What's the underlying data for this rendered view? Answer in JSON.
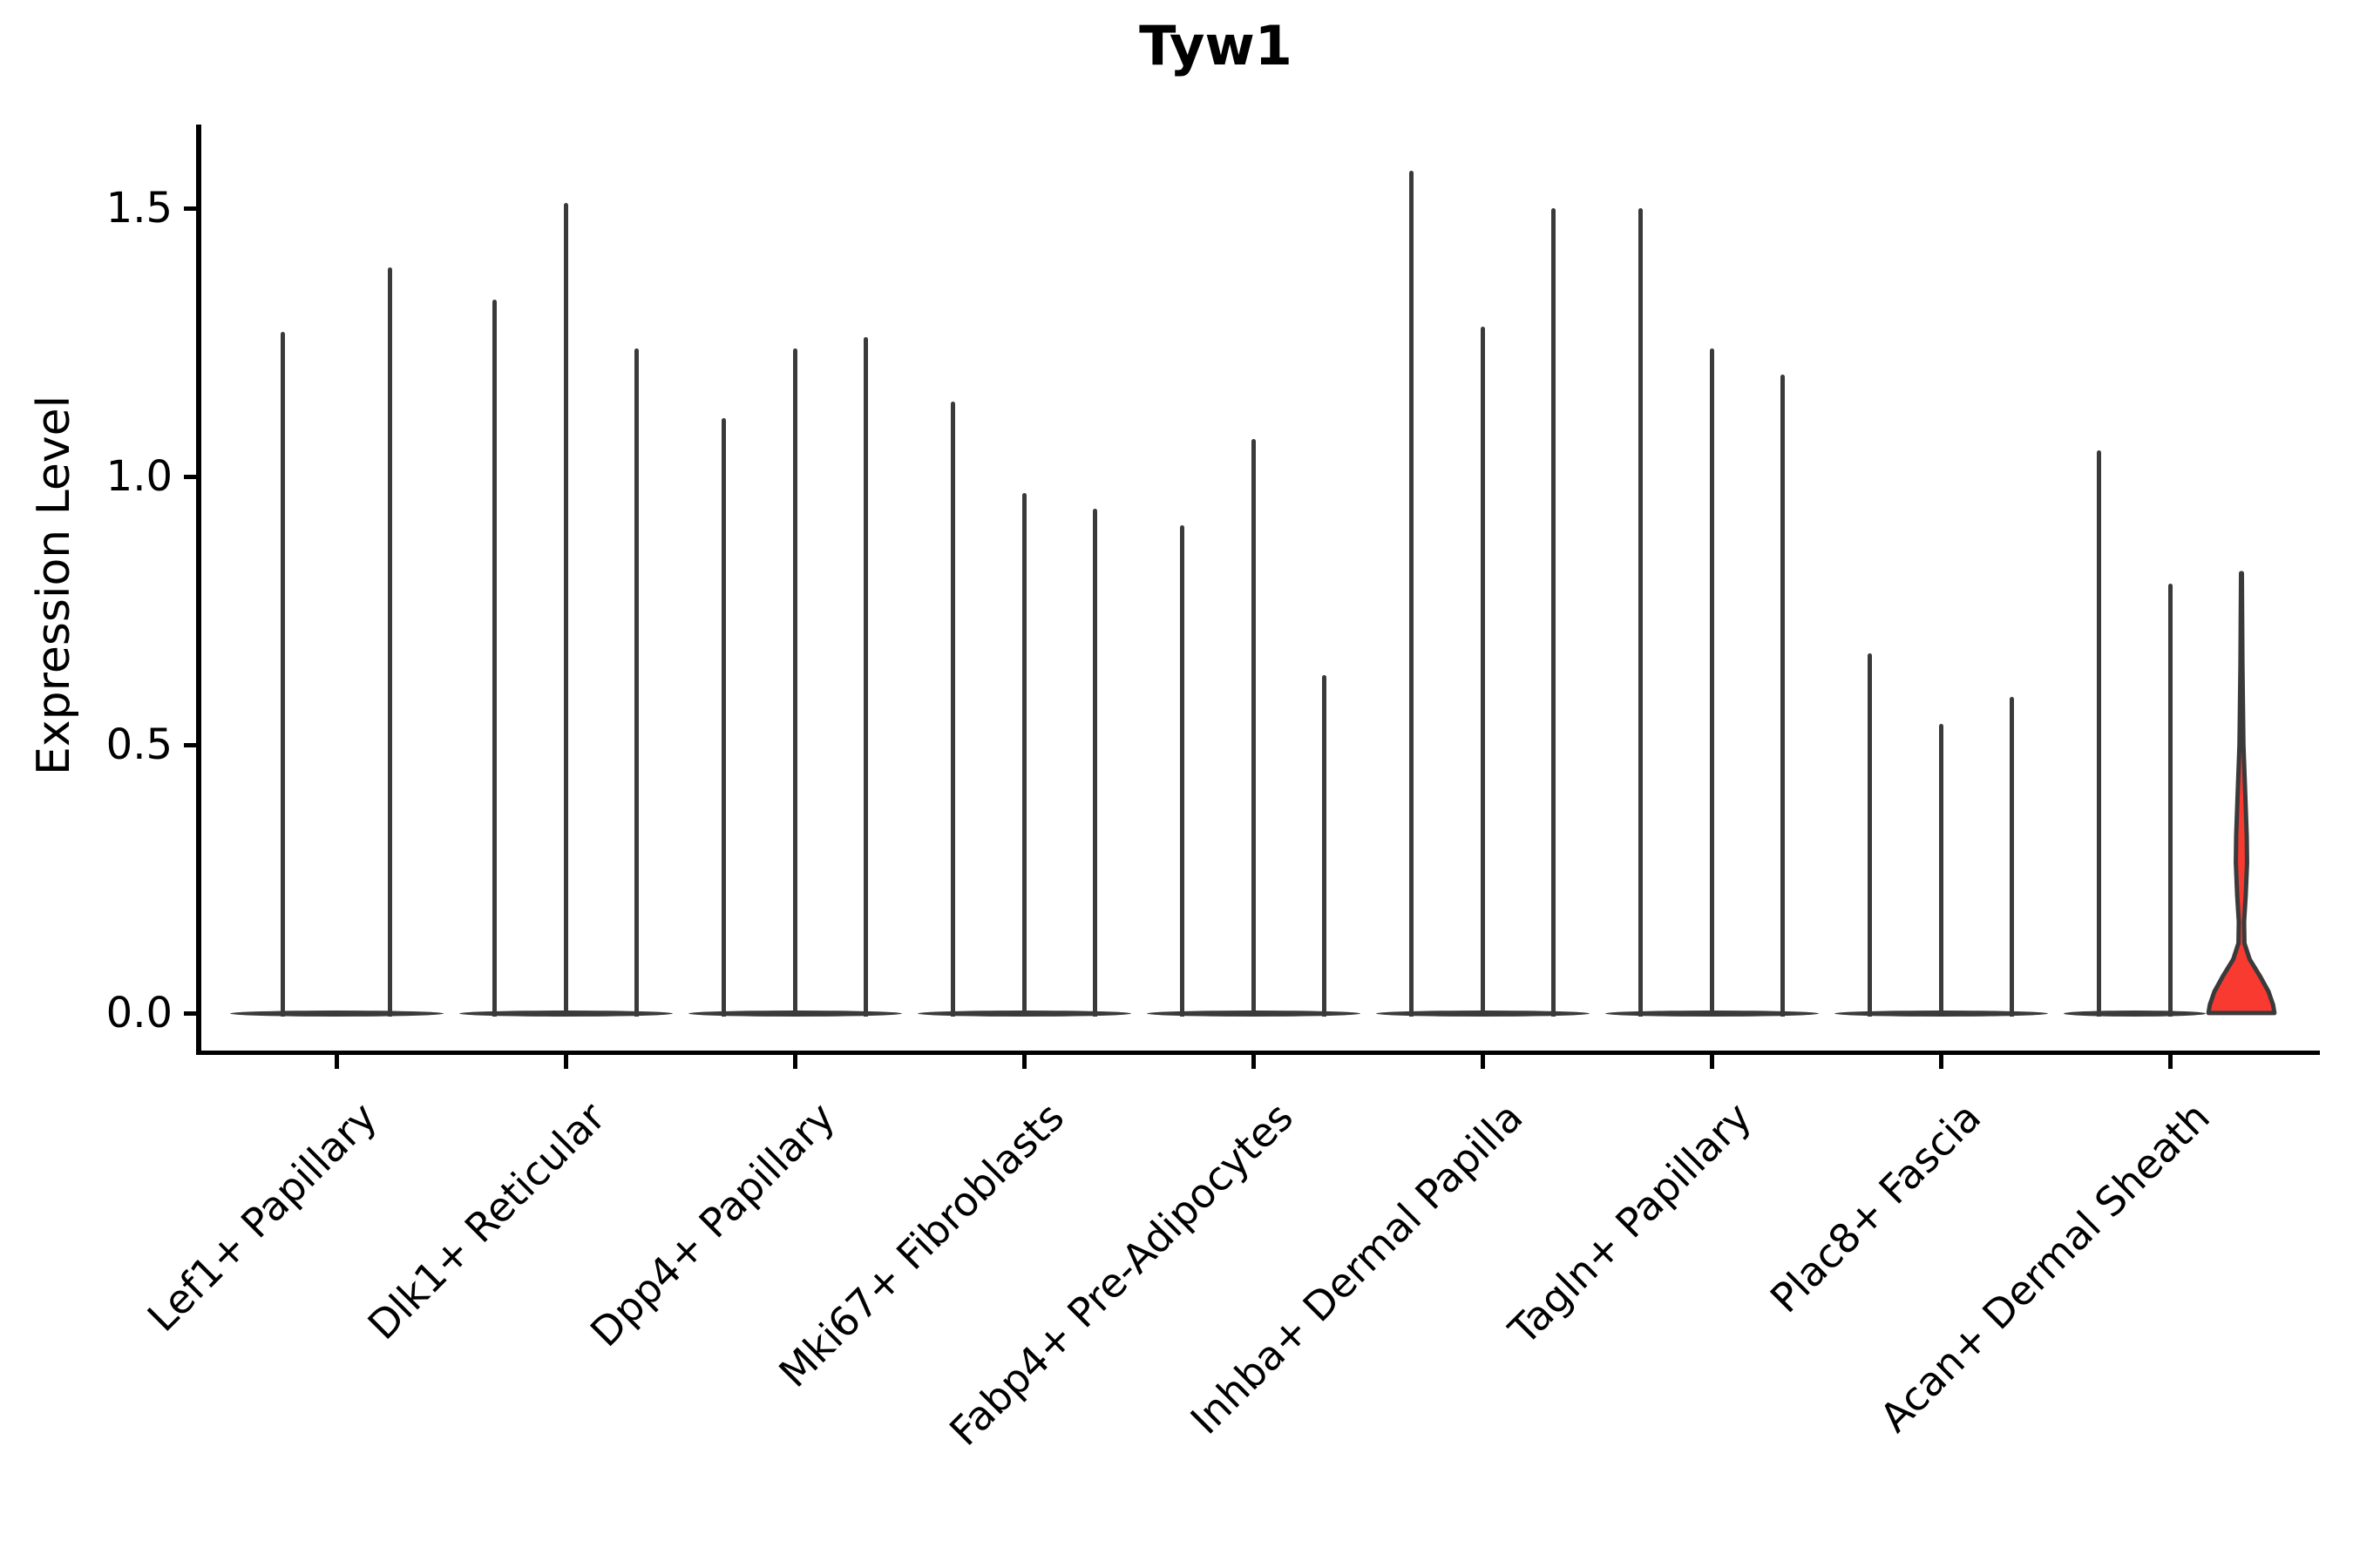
{
  "chart_data": {
    "type": "violin",
    "title": "Tyw1",
    "ylabel": "Expression Level",
    "xlabel": "",
    "ylim": [
      0,
      1.62
    ],
    "yticks": [
      "0.0",
      "0.5",
      "1.0",
      "1.5"
    ],
    "ytick_values": [
      0,
      0.5,
      1.0,
      1.5
    ],
    "grid": false,
    "legend": "none",
    "note": "Violin plot of Tyw1 expression; bulk of every distribution sits at 0 (flat lens on baseline) with a thin spike up to each violin's maximum. Only the last violin of Acan+ Dermal Sheath is highlighted red with visible density body.",
    "groups": [
      {
        "label": "Lef1+ Papillary",
        "violin_max": [
          1.27,
          1.39
        ]
      },
      {
        "label": "Dlk1+ Reticular",
        "violin_max": [
          1.33,
          1.51,
          1.24
        ]
      },
      {
        "label": "Dpp4+ Papillary",
        "violin_max": [
          1.11,
          1.24,
          1.26
        ]
      },
      {
        "label": "Mki67+ Fibroblasts",
        "violin_max": [
          1.14,
          0.97,
          0.94
        ]
      },
      {
        "label": "Fabp4+ Pre-Adipocytes",
        "violin_max": [
          0.91,
          1.07,
          0.63
        ]
      },
      {
        "label": "Inhba+ Dermal Papilla",
        "violin_max": [
          1.57,
          1.28,
          1.5
        ]
      },
      {
        "label": "Tagln+ Papillary",
        "violin_max": [
          1.5,
          1.24,
          1.19
        ]
      },
      {
        "label": "Plac8+ Fascia",
        "violin_max": [
          0.67,
          0.54,
          0.59
        ]
      },
      {
        "label": "Acan+ Dermal Sheath",
        "violin_max": [
          1.05,
          0.8,
          0.82
        ],
        "highlight": {
          "violin_index": 2,
          "fill": "#f93a31",
          "profile": [
            [
              0.82,
              0.013
            ],
            [
              0.65,
              0.03
            ],
            [
              0.5,
              0.06
            ],
            [
              0.4,
              0.12
            ],
            [
              0.33,
              0.16
            ],
            [
              0.28,
              0.17
            ],
            [
              0.22,
              0.13
            ],
            [
              0.17,
              0.08
            ],
            [
              0.13,
              0.09
            ],
            [
              0.1,
              0.25
            ],
            [
              0.07,
              0.55
            ],
            [
              0.04,
              0.82
            ],
            [
              0.015,
              0.96
            ],
            [
              0.0,
              1.0
            ]
          ]
        }
      }
    ],
    "colors": {
      "spike": "#3a3a3a",
      "highlight_fill": "#f93a31",
      "axis": "#000000",
      "text": "#000000"
    }
  }
}
